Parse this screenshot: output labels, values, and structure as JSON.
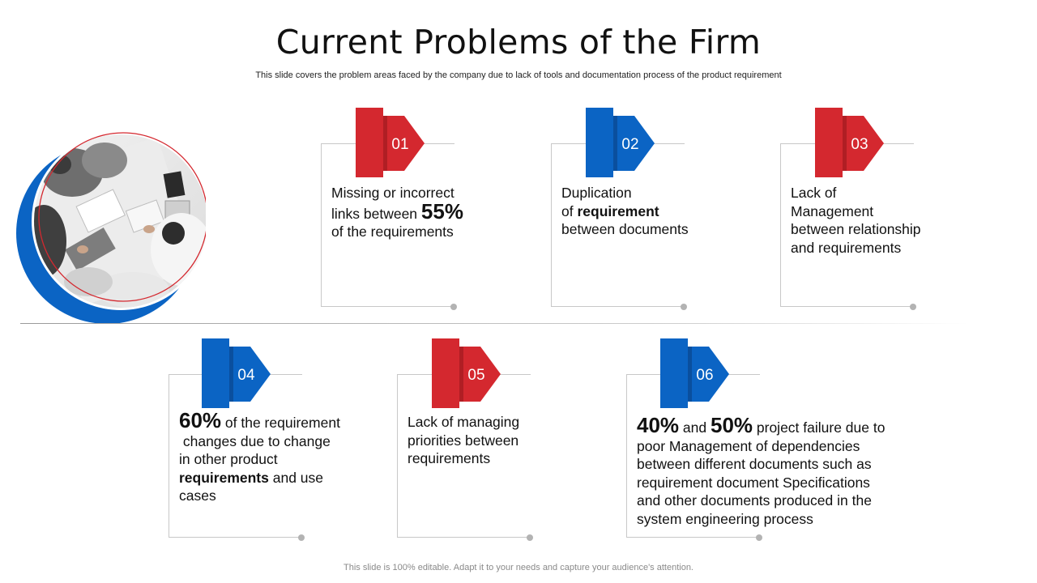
{
  "slide": {
    "title": "Current Problems of the Firm",
    "subtitle": "This slide covers the problem areas faced by the company due to lack of tools and documentation process of the product requirement",
    "footer": "This slide is 100% editable. Adapt it to your needs and capture your audience's attention."
  },
  "colors": {
    "red": "#d4282f",
    "red_dark": "#b01e24",
    "blue": "#0b64c4",
    "blue_dark": "#0a4f9e",
    "frame": "#c8c8c8"
  },
  "photo": {
    "icon": "business-meeting-photo"
  },
  "cards": [
    {
      "num": "01",
      "color": "red",
      "l1": "Missing or incorrect",
      "l2a": "links between ",
      "l2b": "55%",
      "l3": "of the requirements"
    },
    {
      "num": "02",
      "color": "blue",
      "l1": "Duplication",
      "l2a": "of ",
      "l2b": "requirement",
      "l3": "between documents"
    },
    {
      "num": "03",
      "color": "red",
      "l1": "Lack of",
      "l2": "Management",
      "l3": "between relationship",
      "l4": "and requirements"
    },
    {
      "num": "04",
      "color": "blue",
      "l1a": "60%",
      "l1b": " of the requirement",
      "l2": " changes due to change",
      "l3": "in other product",
      "l4a": "requirements",
      "l4b": " and use",
      "l5": "cases"
    },
    {
      "num": "05",
      "color": "red",
      "l1": "Lack of managing",
      "l2": "priorities between",
      "l3": "requirements"
    },
    {
      "num": "06",
      "color": "blue",
      "l1a": "40%",
      "l1b": " and ",
      "l1c": "50%",
      "l1d": " project failure due to",
      "l2": "poor Management of dependencies",
      "l3": "between different documents such as",
      "l4": "requirement document Specifications",
      "l5": "and other documents produced in the",
      "l6": "system engineering process"
    }
  ]
}
